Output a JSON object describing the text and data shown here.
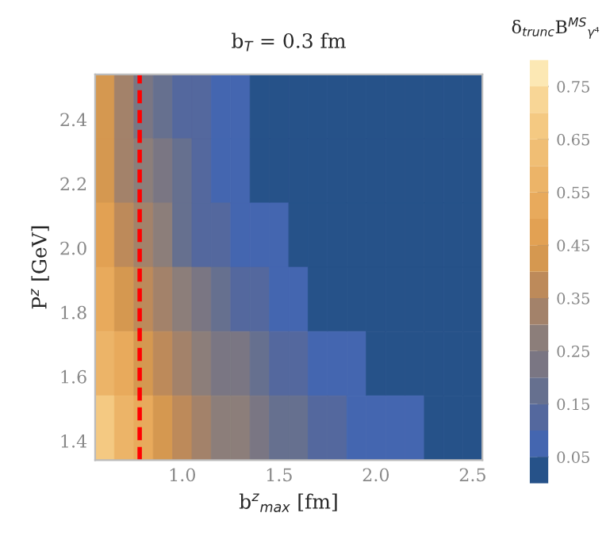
{
  "chart_data": {
    "type": "heatmap",
    "title": "b$_{T}$ = 0.3 fm",
    "xlabel": "b$^{z}$$_{max}$ [fm]",
    "ylabel": "P$^{z}$ [GeV]",
    "clabel": "δ$_{trunc}$B$^{MS}$$_{γ⁴}$",
    "xlim": [
      0.55,
      2.55
    ],
    "ylim": [
      1.34,
      2.54
    ],
    "xticks": [
      {
        "value": 1,
        "label": "1.0"
      },
      1.5,
      {
        "value": 2,
        "label": "2.0"
      },
      2.5
    ],
    "yticks": [
      1.4,
      1.6,
      1.8,
      {
        "value": 2,
        "label": "2.0"
      },
      2.2,
      2.4
    ],
    "clim": [
      0,
      0.8
    ],
    "cticks": [
      0.05,
      0.15,
      0.25,
      0.35,
      0.45,
      0.55,
      0.65,
      0.75
    ],
    "cells": [
      [
        0.42,
        0.31,
        0.24,
        0.18,
        0.13,
        0.1,
        0.07,
        0.05,
        0.035,
        0.025,
        0.02,
        0.02,
        0.015,
        0.015,
        0.01,
        0.01,
        0.01,
        0.01,
        0.005,
        0.005
      ],
      [
        0.43,
        0.34,
        0.27,
        0.2,
        0.155,
        0.12,
        0.09,
        0.065,
        0.045,
        0.03,
        0.025,
        0.02,
        0.02,
        0.015,
        0.015,
        0.01,
        0.01,
        0.01,
        0.01,
        0.005
      ],
      [
        0.48,
        0.37,
        0.31,
        0.25,
        0.19,
        0.15,
        0.115,
        0.09,
        0.07,
        0.05,
        0.035,
        0.025,
        0.02,
        0.02,
        0.015,
        0.015,
        0.01,
        0.01,
        0.01,
        0.01
      ],
      [
        0.51,
        0.42,
        0.36,
        0.31,
        0.25,
        0.2,
        0.16,
        0.13,
        0.1,
        0.085,
        0.065,
        0.047,
        0.035,
        0.025,
        0.02,
        0.02,
        0.015,
        0.015,
        0.01,
        0.01
      ],
      [
        0.6,
        0.51,
        0.43,
        0.38,
        0.33,
        0.29,
        0.24,
        0.2,
        0.165,
        0.14,
        0.11,
        0.09,
        0.075,
        0.06,
        0.046,
        0.036,
        0.028,
        0.022,
        0.02,
        0.018
      ],
      [
        0.67,
        0.58,
        0.51,
        0.43,
        0.39,
        0.35,
        0.3,
        0.26,
        0.22,
        0.185,
        0.16,
        0.135,
        0.11,
        0.095,
        0.08,
        0.065,
        0.05,
        0.042,
        0.033,
        0.026
      ]
    ],
    "ref_lines": [
      {
        "axis": "x",
        "value": 0.78,
        "color": "#ff0000",
        "line_style": "dashed"
      }
    ]
  }
}
